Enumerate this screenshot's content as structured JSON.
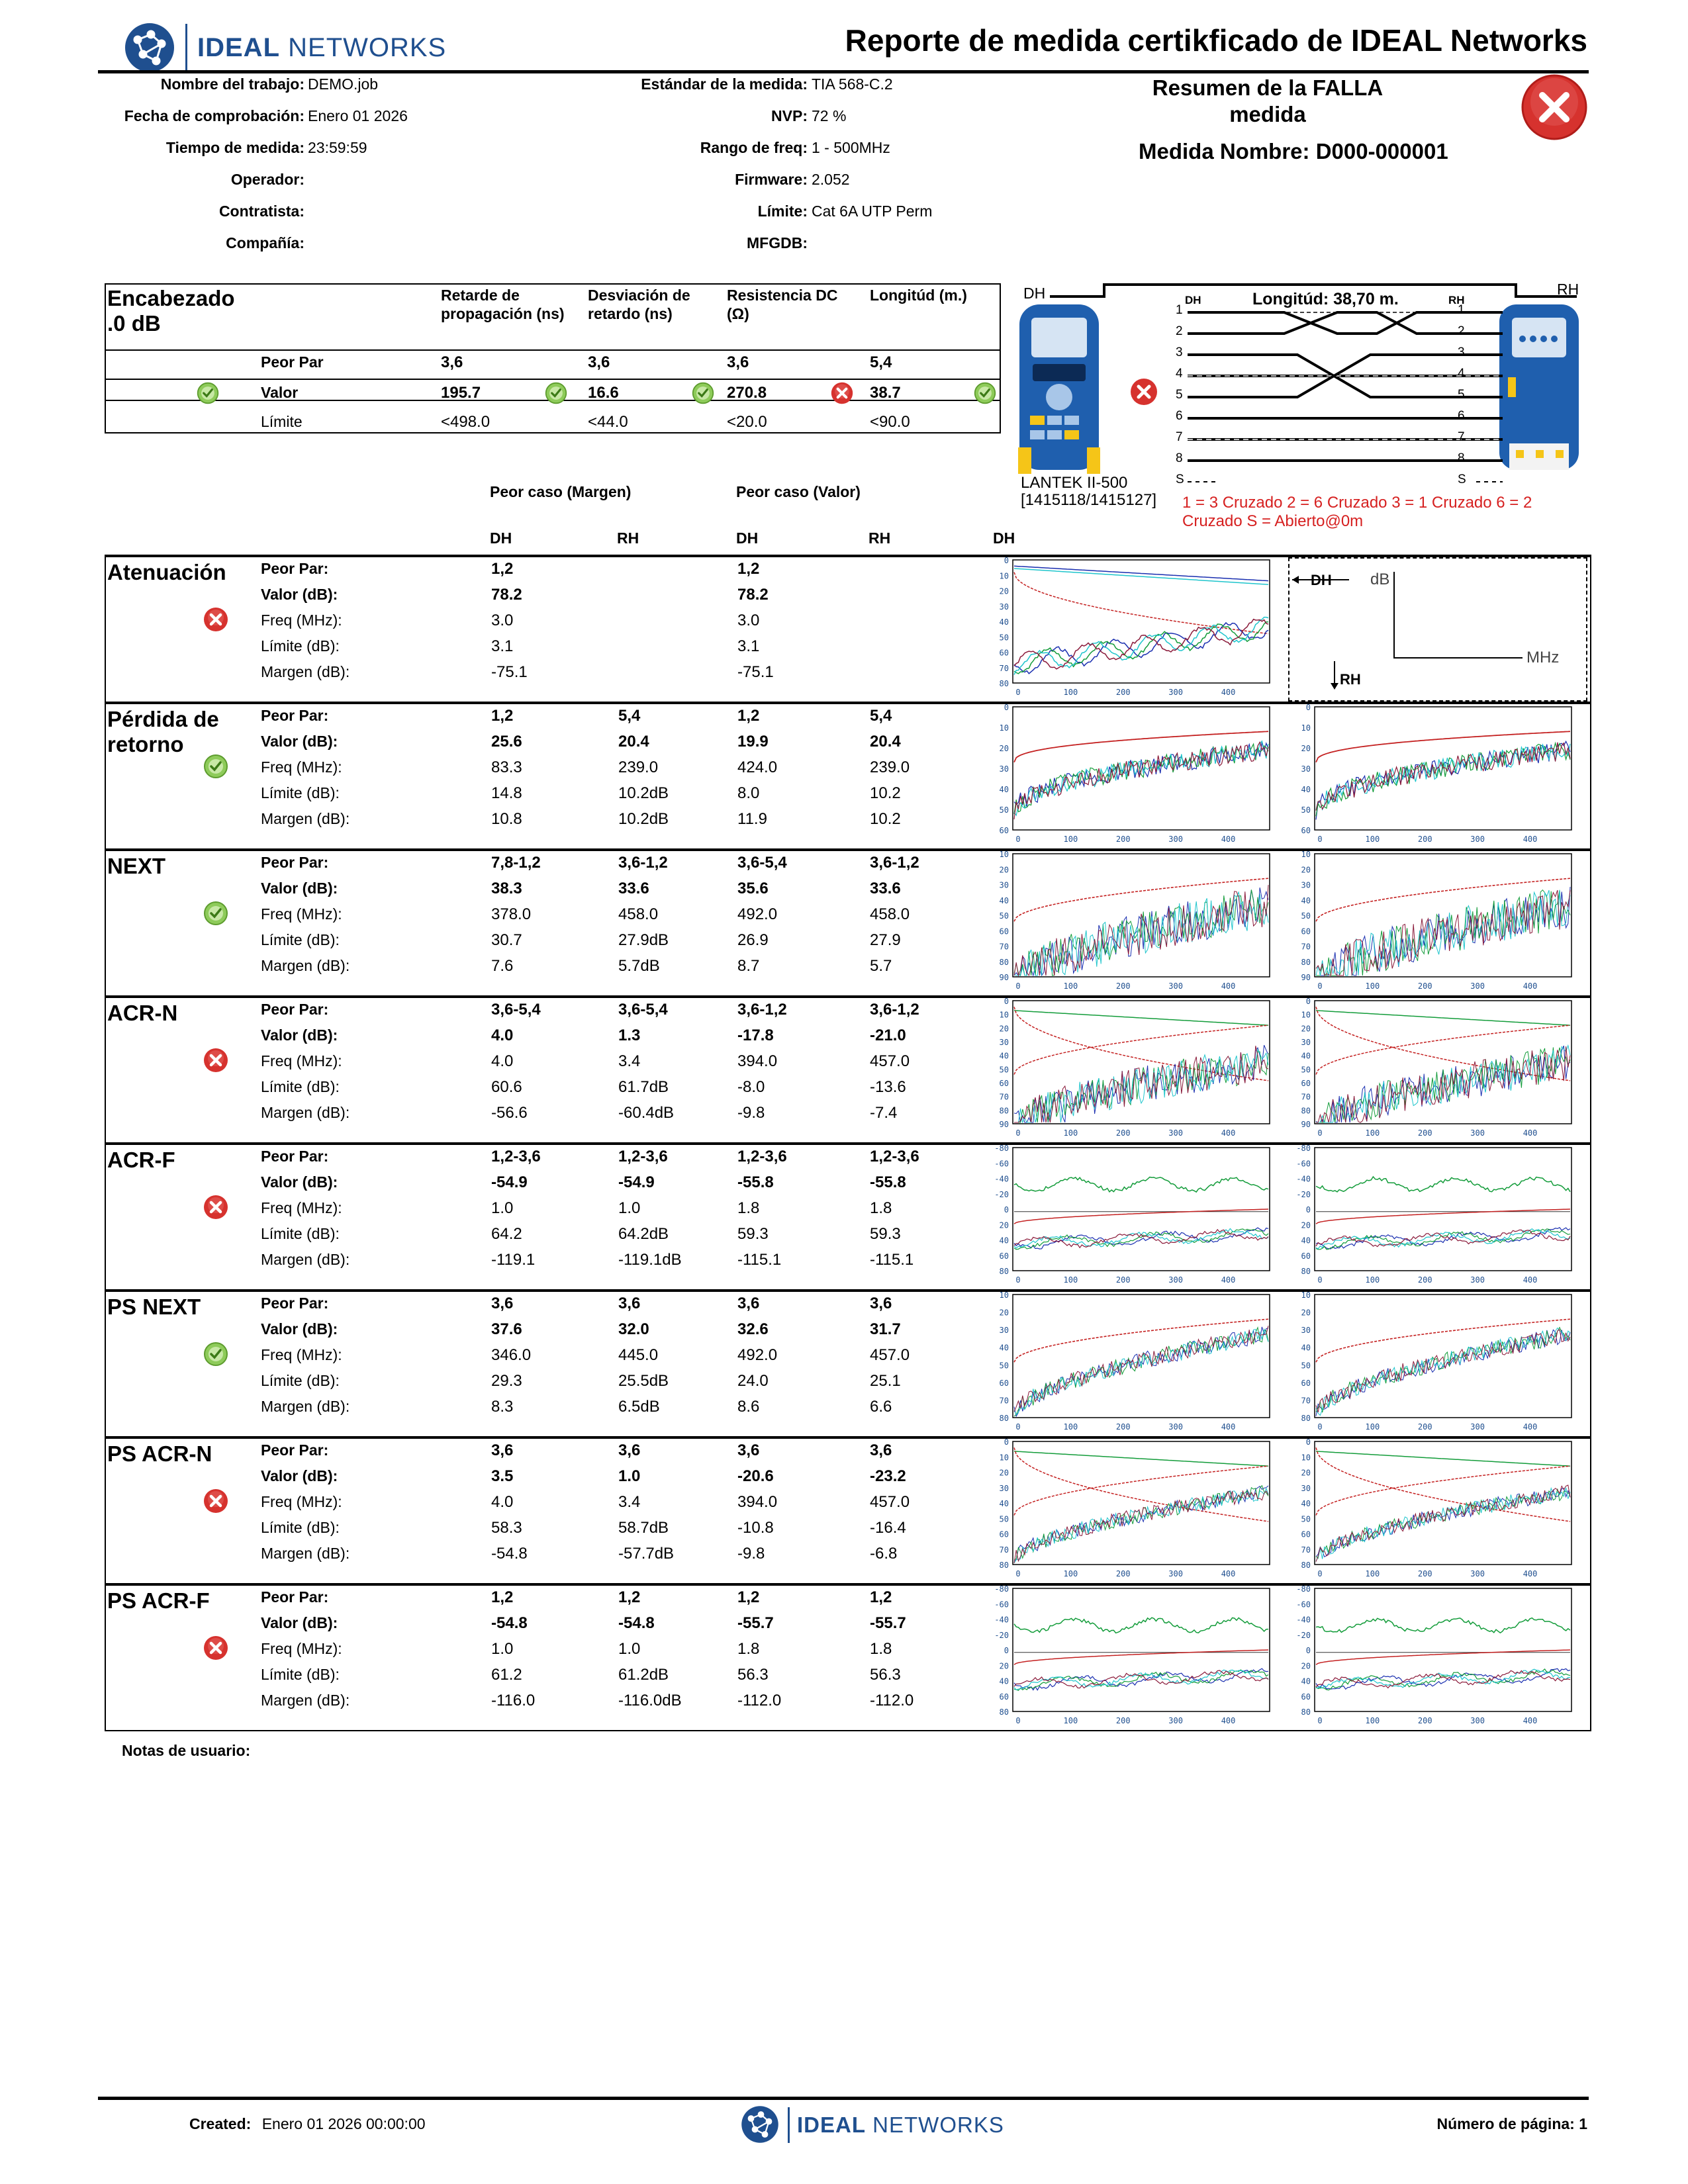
{
  "header": {
    "brand_bold": "IDEAL",
    "brand_light": "NETWORKS",
    "report_title": "Reporte de medida certikficado de IDEAL Networks",
    "fields_left": [
      {
        "label": "Nombre del trabajo:",
        "value": "DEMO.job"
      },
      {
        "label": "Fecha de comprobación:",
        "value": "Enero 01 2026"
      },
      {
        "label": "Tiempo de medida:",
        "value": "23:59:59"
      },
      {
        "label": "Operador:",
        "value": ""
      },
      {
        "label": "Contratista:",
        "value": ""
      },
      {
        "label": "Compañía:",
        "value": ""
      }
    ],
    "fields_mid": [
      {
        "label": "Estándar de la medida:",
        "value": "TIA 568-C.2"
      },
      {
        "label": "NVP:",
        "value": "72 %"
      },
      {
        "label": "Rango de freq:",
        "value": "1 - 500MHz"
      },
      {
        "label": "Firmware:",
        "value": "2.052"
      },
      {
        "label": "Límite:",
        "value": "Cat 6A UTP Perm"
      },
      {
        "label": "MFGDB:",
        "value": ""
      }
    ],
    "summary_line1": "Resumen de la FALLA",
    "summary_line2": "medida",
    "measure_name": "Medida Nombre: D000-000001"
  },
  "summary_table": {
    "title1": "Encabezado",
    "title2": ".0 dB",
    "col_headers": [
      "Retarde de propagación (ns)",
      "Desviación de retardo (ns)",
      "Resistencia DC (Ω)",
      "Longitúd (m.)"
    ],
    "rows": [
      {
        "label": "Peor Par",
        "values": [
          "3,6",
          "3,6",
          "3,6",
          "5,4"
        ]
      },
      {
        "label": "Valor",
        "values": [
          "195.7",
          "16.6",
          "270.8",
          "38.7"
        ],
        "status": [
          "pass",
          "pass",
          "fail",
          "pass"
        ]
      },
      {
        "label": "Límite",
        "values": [
          "<498.0",
          "<44.0",
          "<20.0",
          "<90.0"
        ]
      }
    ]
  },
  "wiremap": {
    "dh": "DH",
    "rh": "RH",
    "length": "Longitúd: 38,70 m.",
    "device": "LANTEK II-500",
    "serials": "[1415118/1415127]",
    "pins": [
      "1",
      "2",
      "3",
      "4",
      "5",
      "6",
      "7",
      "8",
      "S"
    ],
    "fault_text": "1 = 3 Cruzado 2 = 6 Cruzado 3 = 1 Cruzado 6 = 2 Cruzado S = Abierto@0m"
  },
  "columns": {
    "margin_header": "Peor caso (Margen)",
    "value_header": "Peor caso (Valor)",
    "dh": "DH",
    "rh": "RH",
    "graph_dh": "DH"
  },
  "legend": {
    "dh": "DH",
    "db": "dB",
    "mhz": "MHz",
    "rh": "RH"
  },
  "row_labels": [
    "Peor Par:",
    "Valor (dB):",
    "Freq (MHz):",
    "Límite (dB):",
    "Margen (dB):"
  ],
  "sections": [
    {
      "title": "Atenuación",
      "status": "fail",
      "values": [
        [
          "1,2",
          "",
          "1,2",
          ""
        ],
        [
          "78.2",
          "",
          "78.2",
          ""
        ],
        [
          "3.0",
          "",
          "3.0",
          ""
        ],
        [
          "3.1",
          "",
          "3.1",
          ""
        ],
        [
          "-75.1",
          "",
          "-75.1",
          ""
        ]
      ],
      "graphs": 1,
      "ticks": [
        "0",
        "10",
        "20",
        "30",
        "40",
        "50",
        "60",
        "70",
        "80"
      ]
    },
    {
      "title": "Pérdida de retorno",
      "status": "pass",
      "values": [
        [
          "1,2",
          "5,4",
          "1,2",
          "5,4"
        ],
        [
          "25.6",
          "20.4",
          "19.9",
          "20.4"
        ],
        [
          "83.3",
          "239.0",
          "424.0",
          "239.0"
        ],
        [
          "14.8",
          "10.2dB",
          "8.0",
          "10.2"
        ],
        [
          "10.8",
          "10.2dB",
          "11.9",
          "10.2"
        ]
      ],
      "graphs": 2,
      "ticks": [
        "0",
        "10",
        "20",
        "30",
        "40",
        "50",
        "60"
      ]
    },
    {
      "title": "NEXT",
      "status": "pass",
      "values": [
        [
          "7,8-1,2",
          "3,6-1,2",
          "3,6-5,4",
          "3,6-1,2"
        ],
        [
          "38.3",
          "33.6",
          "35.6",
          "33.6"
        ],
        [
          "378.0",
          "458.0",
          "492.0",
          "458.0"
        ],
        [
          "30.7",
          "27.9dB",
          "26.9",
          "27.9"
        ],
        [
          "7.6",
          "5.7dB",
          "8.7",
          "5.7"
        ]
      ],
      "graphs": 2,
      "ticks": [
        "10",
        "20",
        "30",
        "40",
        "50",
        "60",
        "70",
        "80",
        "90"
      ]
    },
    {
      "title": "ACR-N",
      "status": "fail",
      "values": [
        [
          "3,6-5,4",
          "3,6-5,4",
          "3,6-1,2",
          "3,6-1,2"
        ],
        [
          "4.0",
          "1.3",
          "-17.8",
          "-21.0"
        ],
        [
          "4.0",
          "3.4",
          "394.0",
          "457.0"
        ],
        [
          "60.6",
          "61.7dB",
          "-8.0",
          "-13.6"
        ],
        [
          "-56.6",
          "-60.4dB",
          "-9.8",
          "-7.4"
        ]
      ],
      "graphs": 2,
      "ticks": [
        "0",
        "10",
        "20",
        "30",
        "40",
        "50",
        "60",
        "70",
        "80",
        "90"
      ]
    },
    {
      "title": "ACR-F",
      "status": "fail",
      "values": [
        [
          "1,2-3,6",
          "1,2-3,6",
          "1,2-3,6",
          "1,2-3,6"
        ],
        [
          "-54.9",
          "-54.9",
          "-55.8",
          "-55.8"
        ],
        [
          "1.0",
          "1.0",
          "1.8",
          "1.8"
        ],
        [
          "64.2",
          "64.2dB",
          "59.3",
          "59.3"
        ],
        [
          "-119.1",
          "-119.1dB",
          "-115.1",
          "-115.1"
        ]
      ],
      "graphs": 2,
      "ticks": [
        "-80",
        "-60",
        "-40",
        "-20",
        "0",
        "20",
        "40",
        "60",
        "80"
      ]
    },
    {
      "title": "PS NEXT",
      "status": "pass",
      "values": [
        [
          "3,6",
          "3,6",
          "3,6",
          "3,6"
        ],
        [
          "37.6",
          "32.0",
          "32.6",
          "31.7"
        ],
        [
          "346.0",
          "445.0",
          "492.0",
          "457.0"
        ],
        [
          "29.3",
          "25.5dB",
          "24.0",
          "25.1"
        ],
        [
          "8.3",
          "6.5dB",
          "8.6",
          "6.6"
        ]
      ],
      "graphs": 2,
      "ticks": [
        "10",
        "20",
        "30",
        "40",
        "50",
        "60",
        "70",
        "80"
      ]
    },
    {
      "title": "PS ACR-N",
      "status": "fail",
      "values": [
        [
          "3,6",
          "3,6",
          "3,6",
          "3,6"
        ],
        [
          "3.5",
          "1.0",
          "-20.6",
          "-23.2"
        ],
        [
          "4.0",
          "3.4",
          "394.0",
          "457.0"
        ],
        [
          "58.3",
          "58.7dB",
          "-10.8",
          "-16.4"
        ],
        [
          "-54.8",
          "-57.7dB",
          "-9.8",
          "-6.8"
        ]
      ],
      "graphs": 2,
      "ticks": [
        "0",
        "10",
        "20",
        "30",
        "40",
        "50",
        "60",
        "70",
        "80"
      ]
    },
    {
      "title": "PS ACR-F",
      "status": "fail",
      "values": [
        [
          "1,2",
          "1,2",
          "1,2",
          "1,2"
        ],
        [
          "-54.8",
          "-54.8",
          "-55.7",
          "-55.7"
        ],
        [
          "1.0",
          "1.0",
          "1.8",
          "1.8"
        ],
        [
          "61.2",
          "61.2dB",
          "56.3",
          "56.3"
        ],
        [
          "-116.0",
          "-116.0dB",
          "-112.0",
          "-112.0"
        ]
      ],
      "graphs": 2,
      "ticks": [
        "-80",
        "-60",
        "-40",
        "-20",
        "0",
        "20",
        "40",
        "60",
        "80"
      ]
    }
  ],
  "x_ticks": [
    "0",
    "100",
    "200",
    "300",
    "400"
  ],
  "notes_label": "Notas de usuario:",
  "footer": {
    "created_label": "Created:",
    "created_value": "Enero 01 2026 00:00:00",
    "page_label": "Número de página: 1"
  }
}
